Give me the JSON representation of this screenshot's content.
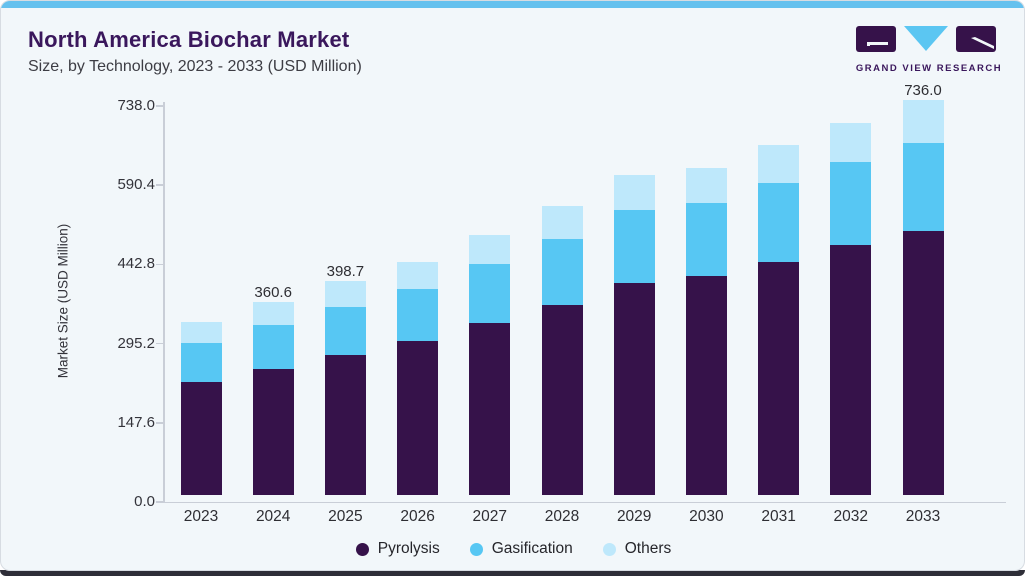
{
  "header": {
    "title": "North America Biochar Market",
    "subtitle": "Size, by Technology, 2023 - 2033 (USD Million)"
  },
  "logo": {
    "brand": "GRAND VIEW RESEARCH"
  },
  "colors": {
    "accent_top_bar": "#65c1ee",
    "title": "#3a175c",
    "card_background": "#f2f7fa",
    "bottom_strip": "#2e2e38",
    "axis": "#c9ced7",
    "pyrolysis": "#36124a",
    "gasification": "#57c7f3",
    "others": "#bee8fb"
  },
  "chart_data": {
    "type": "bar",
    "stacked": true,
    "title": "North America Biochar Market Size, by Technology, 2023 - 2033 (USD Million)",
    "categories": [
      "2023",
      "2024",
      "2025",
      "2026",
      "2027",
      "2028",
      "2029",
      "2030",
      "2031",
      "2032",
      "2033"
    ],
    "series": [
      {
        "name": "Pyrolysis",
        "color": "#36124a",
        "values": [
          209.8,
          234.9,
          260.1,
          287.7,
          320.0,
          354.3,
          394.9,
          407.7,
          434.2,
          465.2,
          492.8
        ]
      },
      {
        "name": "Gasification",
        "color": "#57c7f3",
        "values": [
          73.5,
          81.3,
          89.9,
          96.8,
          109.8,
          121.9,
          135.5,
          136.8,
          147.1,
          155.4,
          163.9
        ]
      },
      {
        "name": "Others",
        "color": "#bee8fb",
        "values": [
          40.0,
          44.4,
          48.7,
          50.3,
          54.7,
          61.9,
          65.8,
          65.8,
          71.0,
          72.3,
          79.3
        ]
      }
    ],
    "totals": [
      323.3,
      360.6,
      398.7,
      434.8,
      484.5,
      538.1,
      596.2,
      610.3,
      652.3,
      692.9,
      736.0
    ],
    "total_labels": {
      "2024": "360.6",
      "2025": "398.7",
      "2033": "736.0"
    },
    "xlabel": "",
    "ylabel": "Market Size (USD Million)",
    "yticks": [
      "0.0",
      "147.6",
      "295.2",
      "442.8",
      "590.4",
      "738.0"
    ],
    "ylim": [
      0,
      738
    ],
    "grid": false,
    "legend_position": "bottom"
  }
}
